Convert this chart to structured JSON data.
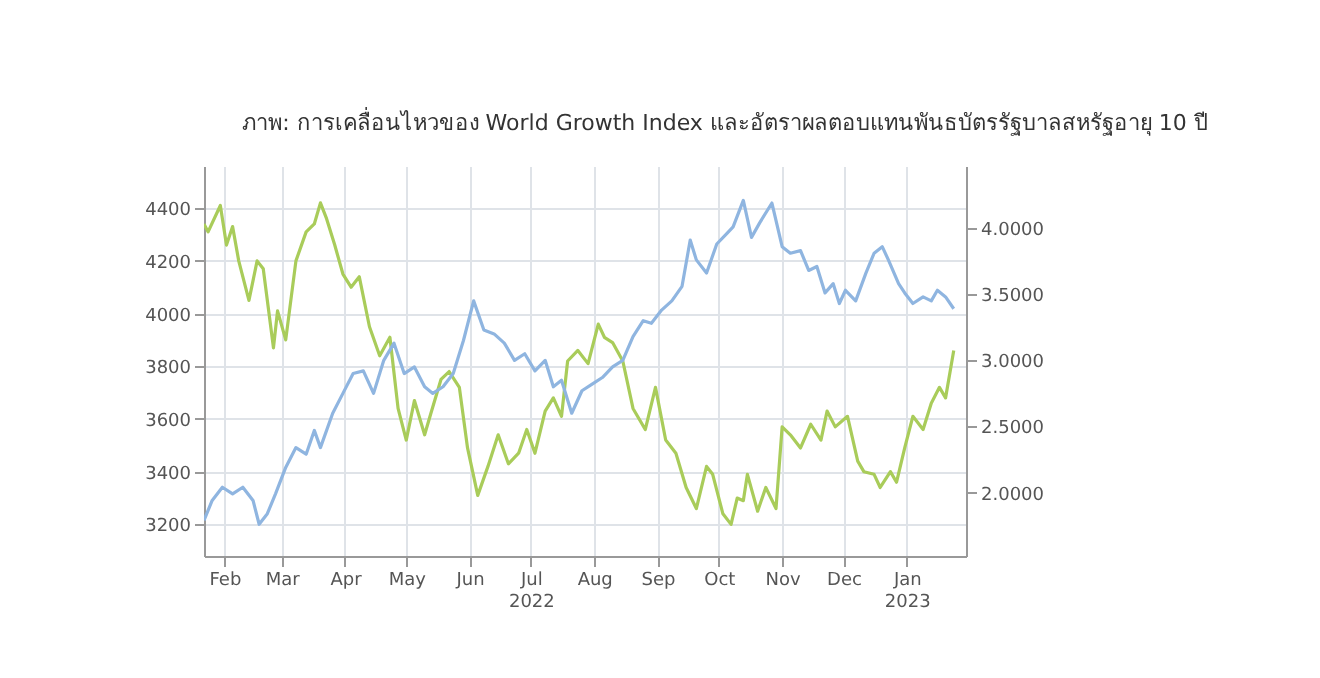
{
  "chart_data": {
    "type": "line",
    "title": "ภาพ: การเคลื่อนไหวของ World Growth Index และอัตราผลตอบแทนพันธบัตรรัฐบาลสหรัฐอายุ 10 ปี",
    "xlim": [
      "2022-02-05",
      "2023-02-13"
    ],
    "xticks": [
      {
        "value": "2022-02-15",
        "label": "Feb"
      },
      {
        "value": "2022-03-15",
        "label": "Mar"
      },
      {
        "value": "2022-04-15",
        "label": "Apr"
      },
      {
        "value": "2022-05-15",
        "label": "May"
      },
      {
        "value": "2022-06-15",
        "label": "Jun"
      },
      {
        "value": "2022-07-15",
        "label": "Jul 2022"
      },
      {
        "value": "2022-08-15",
        "label": "Aug"
      },
      {
        "value": "2022-09-15",
        "label": "Sep"
      },
      {
        "value": "2022-10-15",
        "label": "Oct"
      },
      {
        "value": "2022-11-15",
        "label": "Nov"
      },
      {
        "value": "2022-12-15",
        "label": "Dec"
      },
      {
        "value": "2023-01-15",
        "label": "Jan 2023"
      }
    ],
    "ylim": [
      3080,
      4560
    ],
    "yticks": [
      3200,
      3400,
      3600,
      3800,
      4000,
      4200,
      4400
    ],
    "y2lim": [
      1.52,
      4.47
    ],
    "y2ticks": [
      {
        "value": 2,
        "label": "2.0000"
      },
      {
        "value": 2.5,
        "label": "2.5000"
      },
      {
        "value": 3,
        "label": "3.0000"
      },
      {
        "value": 3.5,
        "label": "3.5000"
      },
      {
        "value": 4,
        "label": "4.0000"
      }
    ],
    "grid": true,
    "series": [
      {
        "color": "#a9cc5a",
        "x": [
          "2022-02-05",
          "2022-02-07",
          "2022-02-13",
          "2022-02-16",
          "2022-02-19",
          "2022-02-22",
          "2022-02-27",
          "2022-03-03",
          "2022-03-06",
          "2022-03-11",
          "2022-03-13",
          "2022-03-17",
          "2022-03-22",
          "2022-03-27",
          "2022-03-31",
          "2022-04-03",
          "2022-04-06",
          "2022-04-10",
          "2022-04-14",
          "2022-04-18",
          "2022-04-22",
          "2022-04-27",
          "2022-05-02",
          "2022-05-07",
          "2022-05-11",
          "2022-05-15",
          "2022-05-19",
          "2022-05-24",
          "2022-05-27",
          "2022-06-01",
          "2022-06-05",
          "2022-06-10",
          "2022-06-14",
          "2022-06-19",
          "2022-06-24",
          "2022-06-29",
          "2022-07-04",
          "2022-07-09",
          "2022-07-13",
          "2022-07-17",
          "2022-07-22",
          "2022-07-26",
          "2022-07-30",
          "2022-08-02",
          "2022-08-07",
          "2022-08-12",
          "2022-08-17",
          "2022-08-20",
          "2022-08-24",
          "2022-08-29",
          "2022-09-03",
          "2022-09-09",
          "2022-09-14",
          "2022-09-19",
          "2022-09-24",
          "2022-09-29",
          "2022-10-04",
          "2022-10-09",
          "2022-10-12",
          "2022-10-17",
          "2022-10-21",
          "2022-10-24",
          "2022-10-27",
          "2022-10-29",
          "2022-11-03",
          "2022-11-07",
          "2022-11-12",
          "2022-11-15",
          "2022-11-19",
          "2022-11-24",
          "2022-11-29",
          "2022-12-04",
          "2022-12-07",
          "2022-12-11",
          "2022-12-17",
          "2022-12-22",
          "2022-12-25",
          "2022-12-30",
          "2023-01-02",
          "2023-01-07",
          "2023-01-10",
          "2023-01-14",
          "2023-01-18",
          "2023-01-23",
          "2023-01-27",
          "2023-01-31",
          "2023-02-03",
          "2023-02-07"
        ],
        "values": [
          4340,
          4310,
          4410,
          4260,
          4330,
          4200,
          4050,
          4200,
          4170,
          3870,
          4010,
          3900,
          4200,
          4310,
          4340,
          4420,
          4360,
          4260,
          4150,
          4100,
          4140,
          3950,
          3840,
          3910,
          3640,
          3520,
          3670,
          3540,
          3620,
          3750,
          3780,
          3720,
          3490,
          3310,
          3420,
          3540,
          3430,
          3470,
          3560,
          3470,
          3630,
          3680,
          3610,
          3820,
          3860,
          3810,
          3960,
          3910,
          3890,
          3820,
          3640,
          3560,
          3720,
          3520,
          3470,
          3340,
          3260,
          3420,
          3390,
          3240,
          3200,
          3300,
          3290,
          3390,
          3250,
          3340,
          3260,
          3570,
          3540,
          3490,
          3580,
          3520,
          3630,
          3570,
          3610,
          3440,
          3400,
          3390,
          3340,
          3400,
          3360,
          3490,
          3610,
          3560,
          3660,
          3720,
          3680,
          3860
        ]
      },
      {
        "color": "#8fb5e0",
        "axis": "y2",
        "x": [
          "2022-02-05",
          "2022-02-09",
          "2022-02-14",
          "2022-02-19",
          "2022-02-24",
          "2022-03-01",
          "2022-03-04",
          "2022-03-08",
          "2022-03-12",
          "2022-03-17",
          "2022-03-22",
          "2022-03-27",
          "2022-03-31",
          "2022-04-03",
          "2022-04-09",
          "2022-04-14",
          "2022-04-19",
          "2022-04-24",
          "2022-04-29",
          "2022-05-04",
          "2022-05-09",
          "2022-05-14",
          "2022-05-19",
          "2022-05-24",
          "2022-05-28",
          "2022-06-02",
          "2022-06-07",
          "2022-06-12",
          "2022-06-17",
          "2022-06-22",
          "2022-06-27",
          "2022-07-02",
          "2022-07-07",
          "2022-07-12",
          "2022-07-17",
          "2022-07-22",
          "2022-07-26",
          "2022-07-30",
          "2022-08-04",
          "2022-08-09",
          "2022-08-14",
          "2022-08-19",
          "2022-08-24",
          "2022-08-29",
          "2022-09-03",
          "2022-09-08",
          "2022-09-12",
          "2022-09-17",
          "2022-09-22",
          "2022-09-27",
          "2022-10-01",
          "2022-10-04",
          "2022-10-09",
          "2022-10-14",
          "2022-10-19",
          "2022-10-22",
          "2022-10-27",
          "2022-10-31",
          "2022-11-04",
          "2022-11-10",
          "2022-11-15",
          "2022-11-19",
          "2022-11-24",
          "2022-11-28",
          "2022-12-02",
          "2022-12-06",
          "2022-12-10",
          "2022-12-13",
          "2022-12-16",
          "2022-12-21",
          "2022-12-26",
          "2022-12-30",
          "2023-01-03",
          "2023-01-06",
          "2023-01-11",
          "2023-01-14",
          "2023-01-18",
          "2023-01-23",
          "2023-01-27",
          "2023-01-30",
          "2023-02-03",
          "2023-02-07"
        ],
        "values": [
          1.79,
          1.94,
          2.04,
          1.99,
          2.04,
          1.94,
          1.76,
          1.84,
          1.99,
          2.19,
          2.34,
          2.29,
          2.47,
          2.34,
          2.6,
          2.75,
          2.9,
          2.92,
          2.75,
          3.0,
          3.13,
          2.9,
          2.95,
          2.8,
          2.75,
          2.8,
          2.9,
          3.15,
          3.45,
          3.23,
          3.2,
          3.13,
          3.0,
          3.05,
          2.92,
          3.0,
          2.8,
          2.85,
          2.6,
          2.77,
          2.82,
          2.87,
          2.95,
          3.0,
          3.18,
          3.3,
          3.28,
          3.38,
          3.45,
          3.56,
          3.91,
          3.76,
          3.66,
          3.88,
          3.96,
          4.01,
          4.21,
          3.93,
          4.04,
          4.19,
          3.86,
          3.81,
          3.83,
          3.68,
          3.71,
          3.51,
          3.58,
          3.43,
          3.53,
          3.45,
          3.66,
          3.81,
          3.86,
          3.76,
          3.58,
          3.51,
          3.43,
          3.48,
          3.45,
          3.53,
          3.48,
          3.39
        ]
      }
    ]
  }
}
